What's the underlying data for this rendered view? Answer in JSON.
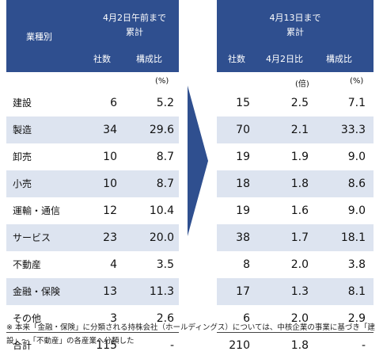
{
  "left_header": {
    "category": "業種別",
    "period": "4月2日午前まで\n累計",
    "col_companies": "社数",
    "col_share": "構成比",
    "unit": "(%)"
  },
  "right_header": {
    "period": "4月13日まで\n累計",
    "col_companies": "社数",
    "col_ratio": "4月2日比",
    "col_share": "構成比",
    "unit_ratio": "(倍)",
    "unit_share": "(%)"
  },
  "rows": [
    {
      "label": "建設",
      "l_count": "6",
      "l_share": "5.2",
      "r_count": "15",
      "r_ratio": "2.5",
      "r_share": "7.1"
    },
    {
      "label": "製造",
      "l_count": "34",
      "l_share": "29.6",
      "r_count": "70",
      "r_ratio": "2.1",
      "r_share": "33.3"
    },
    {
      "label": "卸売",
      "l_count": "10",
      "l_share": "8.7",
      "r_count": "19",
      "r_ratio": "1.9",
      "r_share": "9.0"
    },
    {
      "label": "小売",
      "l_count": "10",
      "l_share": "8.7",
      "r_count": "18",
      "r_ratio": "1.8",
      "r_share": "8.6"
    },
    {
      "label": "運輸・通信",
      "l_count": "12",
      "l_share": "10.4",
      "r_count": "19",
      "r_ratio": "1.6",
      "r_share": "9.0"
    },
    {
      "label": "サービス",
      "l_count": "23",
      "l_share": "20.0",
      "r_count": "38",
      "r_ratio": "1.7",
      "r_share": "18.1"
    },
    {
      "label": "不動産",
      "l_count": "4",
      "l_share": "3.5",
      "r_count": "8",
      "r_ratio": "2.0",
      "r_share": "3.8"
    },
    {
      "label": "金融・保険",
      "l_count": "13",
      "l_share": "11.3",
      "r_count": "17",
      "r_ratio": "1.3",
      "r_share": "8.1"
    },
    {
      "label": "その他",
      "l_count": "3",
      "l_share": "2.6",
      "r_count": "6",
      "r_ratio": "2.0",
      "r_share": "2.9"
    },
    {
      "label": "合計",
      "l_count": "115",
      "l_share": "-",
      "r_count": "210",
      "r_ratio": "1.8",
      "r_share": "-"
    }
  ],
  "note": "※ 本来「金融・保険」に分類される持株会社（ホールディングス）については、中核企業の事業に基づき「建設」～「不動産」の各産業へ分類した",
  "colors": {
    "header": "#2f4f8f",
    "band": "#dde4f0",
    "arrow": "#2f4f8f"
  }
}
